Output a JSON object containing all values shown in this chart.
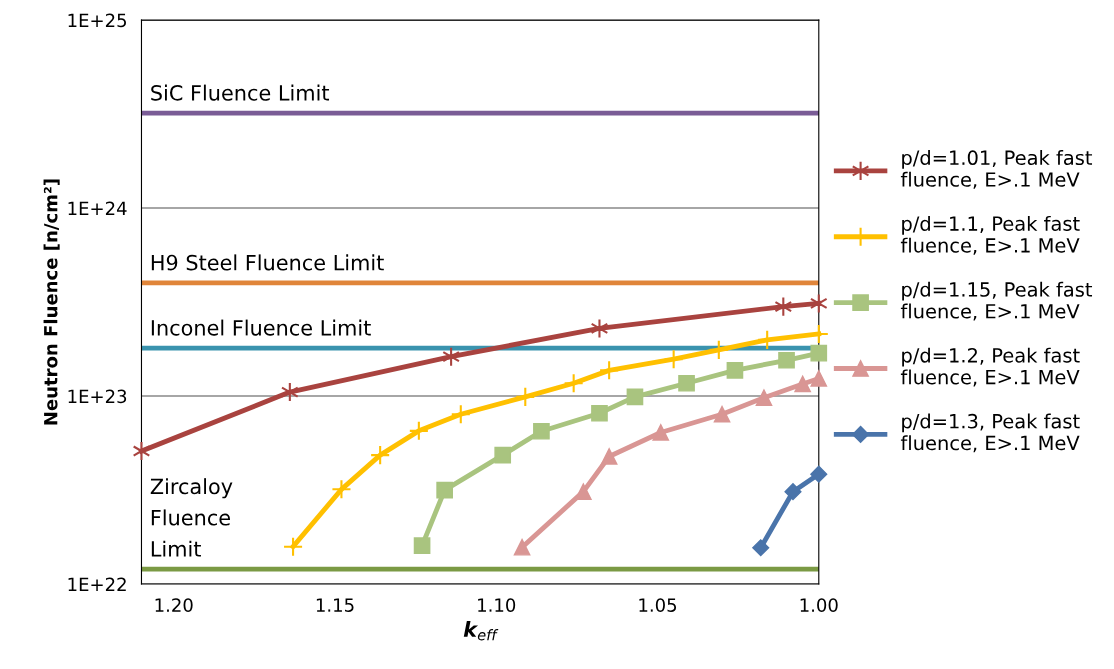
{
  "chart_data": {
    "type": "line",
    "xlabel": "k$_{eff}$",
    "ylabel": "Neutron Fluence [n/cm²]",
    "log": "y",
    "xlim": [
      1.21,
      1.0
    ],
    "xticks": [
      {
        "value": 1.2,
        "label": "1.20"
      },
      {
        "value": 1.15,
        "label": "1.15"
      },
      {
        "value": 1.1,
        "label": "1.10"
      },
      {
        "value": 1.05,
        "label": "1.05"
      },
      {
        "value": 1.0,
        "label": "1.00"
      }
    ],
    "ylim": [
      1e+22,
      1e+25
    ],
    "yticks": [
      {
        "value": 1e+22,
        "label": "1E+22"
      },
      {
        "value": 1e+23,
        "label": "1E+23"
      },
      {
        "value": 1e+24,
        "label": "1E+24"
      },
      {
        "value": 1e+25,
        "label": "1E+25"
      }
    ],
    "grid": "y",
    "legend": "right",
    "marker": "cross",
    "series": [
      {
        "name": "p/d=1.01, Peak fast fluence, E>.1 MeV",
        "color": "#a9433f",
        "x": [
          1.21,
          1.164,
          1.114,
          1.068,
          1.011,
          1.0
        ],
        "values": [
          5.1e+22,
          1.05e+23,
          1.62e+23,
          2.29e+23,
          2.99e+23,
          3.11e+23
        ]
      },
      {
        "name": "p/d=1.1, Peak fast fluence, E>.1 MeV",
        "color": "#ffc000",
        "marker": "cross",
        "x": [
          1.163,
          1.148,
          1.136,
          1.124,
          1.111,
          1.091,
          1.076,
          1.065,
          1.045,
          1.031,
          1.016,
          1.0
        ],
        "values": [
          1.58e+22,
          3.19e+22,
          4.85e+22,
          6.53e+22,
          8e+22,
          9.9e+22,
          1.17e+23,
          1.37e+23,
          1.57e+23,
          1.76e+23,
          1.99e+23,
          2.14e+23
        ]
      },
      {
        "name": "p/d=1.15, Peak fast fluence, E>.1 MeV",
        "color": "#a9c47f",
        "marker": "square",
        "x": [
          1.123,
          1.116,
          1.098,
          1.086,
          1.068,
          1.057,
          1.041,
          1.026,
          1.01,
          1.0
        ],
        "values": [
          1.6e+22,
          3.16e+22,
          4.85e+22,
          6.5e+22,
          8.1e+22,
          9.9e+22,
          1.17e+23,
          1.37e+23,
          1.55e+23,
          1.69e+23
        ]
      },
      {
        "name": "p/d=1.2, Peak fast fluence, E>.1 MeV",
        "color": "#d99694",
        "marker": "triangle",
        "x": [
          1.092,
          1.073,
          1.065,
          1.049,
          1.03,
          1.017,
          1.005,
          1.0
        ],
        "values": [
          1.57e+22,
          3.1e+22,
          4.77e+22,
          6.4e+22,
          8e+22,
          9.8e+22,
          1.16e+23,
          1.24e+23
        ]
      },
      {
        "name": "p/d=1.3, Peak fast fluence, E>.1 MeV",
        "color": "#4a74aa",
        "marker": "diamond",
        "x": [
          1.018,
          1.008,
          1.0
        ],
        "values": [
          1.56e+22,
          3.1e+22,
          3.84e+22
        ]
      }
    ],
    "ref_lines": [
      {
        "axis": "y",
        "value": 3.2e+24,
        "label": "SiC Fluence Limit",
        "color": "#7a5c96"
      },
      {
        "axis": "y",
        "value": 4e+23,
        "label": "H9 Steel Fluence Limit",
        "color": "#e0853a"
      },
      {
        "axis": "y",
        "value": 1.8e+23,
        "label": "Inconel Fluence Limit",
        "color": "#3a93ae"
      },
      {
        "axis": "y",
        "value": 1.2e+22,
        "label": "Zircaloy Fluence Limit",
        "color": "#7b9a44"
      }
    ]
  }
}
